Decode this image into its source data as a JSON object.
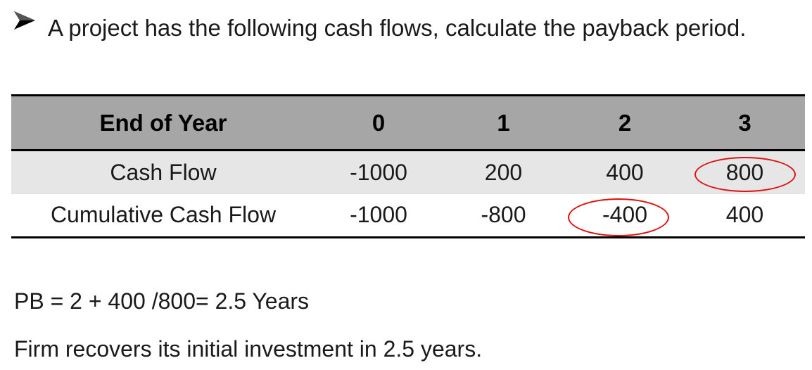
{
  "question": {
    "text": "A project has the following cash flows, calculate the payback period."
  },
  "table": {
    "headers": [
      "End of Year",
      "0",
      "1",
      "2",
      "3"
    ],
    "rows": [
      {
        "label": "Cash Flow",
        "values": [
          "-1000",
          "200",
          "400",
          "800"
        ]
      },
      {
        "label": "Cumulative Cash Flow",
        "values": [
          "-1000",
          "-800",
          "-400",
          "400"
        ]
      }
    ]
  },
  "colors": {
    "header_bg": "#a6a6a6",
    "shaded_row_bg": "#e6e6e6",
    "highlight_circle": "#e01010"
  },
  "icons": {
    "bullet": "arrow-bullet-icon"
  },
  "formula": "PB = 2 + 400 /800= 2.5 Years",
  "conclusion": "Firm recovers its initial investment in 2.5 years."
}
